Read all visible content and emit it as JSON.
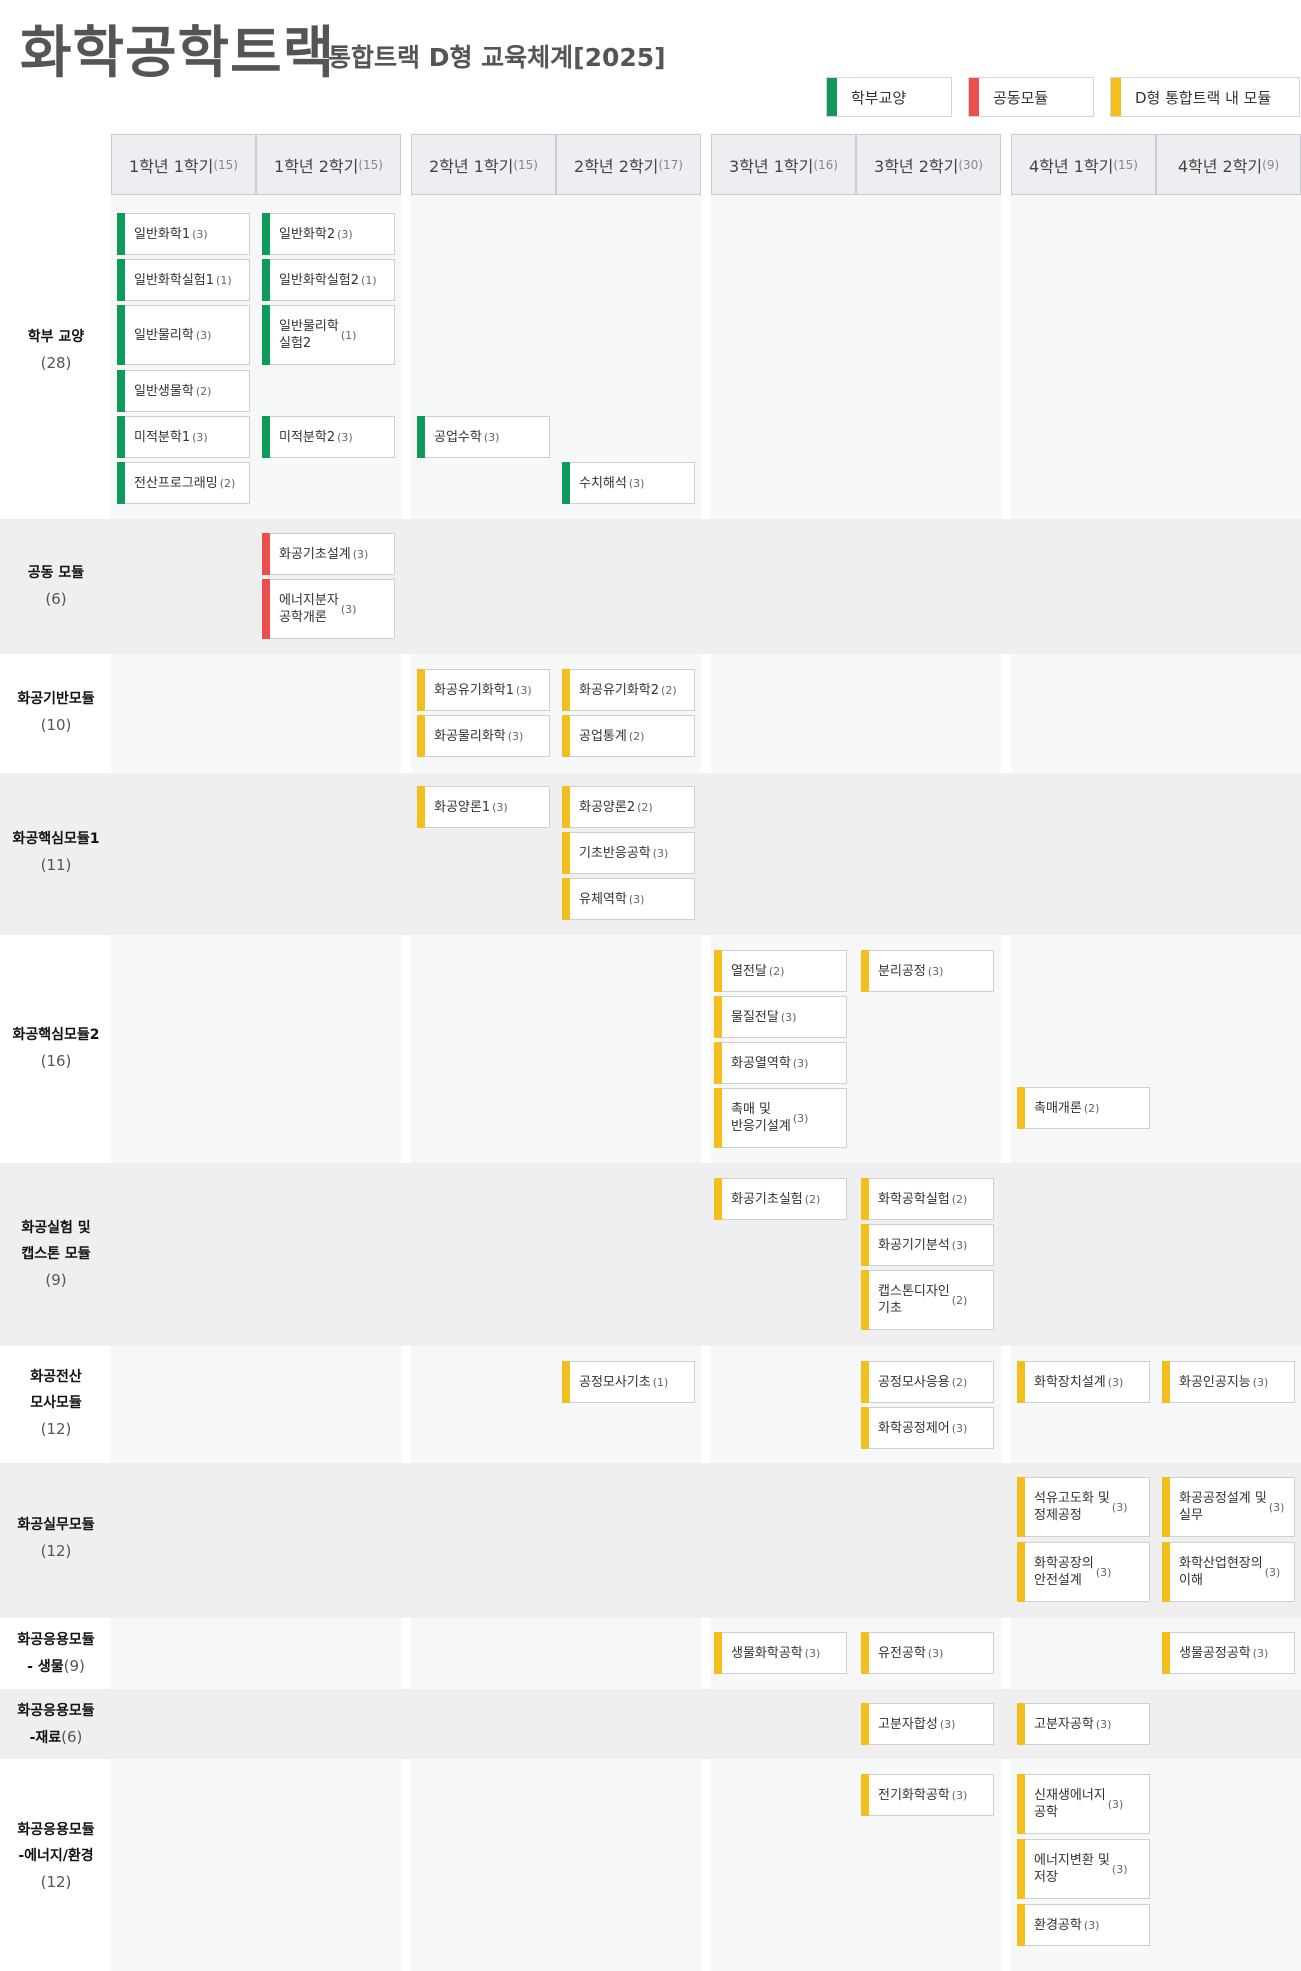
{
  "header": {
    "title": "화학공학트랙",
    "subtitle": "통합트랙 D형 교육체계[2025]"
  },
  "legend": [
    {
      "label": "학부교양",
      "color": "#0e9a5a"
    },
    {
      "label": "공동모듈",
      "color": "#ec4e4e"
    },
    {
      "label": "D형 통합트랙 내 모듈",
      "color": "#f3bf1e"
    }
  ],
  "semesters": [
    {
      "label": "1학년 1학기",
      "credits": "(15)"
    },
    {
      "label": "1학년 2학기",
      "credits": "(15)"
    },
    {
      "label": "2학년 1학기",
      "credits": "(15)"
    },
    {
      "label": "2학년 2학기",
      "credits": "(17)"
    },
    {
      "label": "3학년 1학기",
      "credits": "(16)"
    },
    {
      "label": "3학년 2학기",
      "credits": "(30)"
    },
    {
      "label": "4학년 1학기",
      "credits": "(15)"
    },
    {
      "label": "4학년 2학기",
      "credits": "(9)"
    }
  ],
  "rows": [
    {
      "name": "학부 교양",
      "credit": "(28)"
    },
    {
      "name": "공동 모듈",
      "credit": "(6)"
    },
    {
      "name": "화공기반모듈",
      "credit": "(10)"
    },
    {
      "name": "화공핵심모듈1",
      "credit": "(11)"
    },
    {
      "name": "화공핵심모듈2",
      "credit": "(16)"
    },
    {
      "name": "화공실험 및\n캡스톤 모듈",
      "credit": "(9)"
    },
    {
      "name": "화공전산\n모사모듈",
      "credit": "(12)"
    },
    {
      "name": "화공실무모듈",
      "credit": "(12)"
    },
    {
      "name": "화공응용모듈\n- 생물",
      "credit": "(9)"
    },
    {
      "name": "화공응용모듈\n-재료",
      "credit": "(6)"
    },
    {
      "name": "화공응용모듈\n-에너지/환경",
      "credit": "(12)"
    }
  ],
  "courses": [
    {
      "name": "일반화학1",
      "credit": "(3)",
      "type": "green"
    },
    {
      "name": "일반화학실험1",
      "credit": "(1)",
      "type": "green"
    },
    {
      "name": "일반물리학",
      "credit": "(3)",
      "type": "green"
    },
    {
      "name": "일반생물학",
      "credit": "(2)",
      "type": "green"
    },
    {
      "name": "미적분학1",
      "credit": "(3)",
      "type": "green"
    },
    {
      "name": "전산프로그래밍",
      "credit": "(2)",
      "type": "green"
    },
    {
      "name": "일반화학2",
      "credit": "(3)",
      "type": "green"
    },
    {
      "name": "일반화학실험2",
      "credit": "(1)",
      "type": "green"
    },
    {
      "name": "일반물리학\n실험2",
      "credit": "(1)",
      "type": "green"
    },
    {
      "name": "미적분학2",
      "credit": "(3)",
      "type": "green"
    },
    {
      "name": "공업수학",
      "credit": "(3)",
      "type": "green"
    },
    {
      "name": "수치해석",
      "credit": "(3)",
      "type": "green"
    },
    {
      "name": "화공기초설계",
      "credit": "(3)",
      "type": "red"
    },
    {
      "name": "에너지분자\n공학개론",
      "credit": "(3)",
      "type": "red"
    },
    {
      "name": "화공유기화학1",
      "credit": "(3)",
      "type": "yellow"
    },
    {
      "name": "화공물리화학",
      "credit": "(3)",
      "type": "yellow"
    },
    {
      "name": "화공유기화학2",
      "credit": "(2)",
      "type": "yellow"
    },
    {
      "name": "공업통계",
      "credit": "(2)",
      "type": "yellow"
    },
    {
      "name": "화공양론1",
      "credit": "(3)",
      "type": "yellow"
    },
    {
      "name": "화공양론2",
      "credit": "(2)",
      "type": "yellow"
    },
    {
      "name": "기초반응공학",
      "credit": "(3)",
      "type": "yellow"
    },
    {
      "name": "유체역학",
      "credit": "(3)",
      "type": "yellow"
    },
    {
      "name": "열전달",
      "credit": "(2)",
      "type": "yellow"
    },
    {
      "name": "물질전달",
      "credit": "(3)",
      "type": "yellow"
    },
    {
      "name": "화공열역학",
      "credit": "(3)",
      "type": "yellow"
    },
    {
      "name": "촉매 및\n반응기설계",
      "credit": "(3)",
      "type": "yellow"
    },
    {
      "name": "분리공정",
      "credit": "(3)",
      "type": "yellow"
    },
    {
      "name": "촉매개론",
      "credit": "(2)",
      "type": "yellow"
    },
    {
      "name": "화공기초실험",
      "credit": "(2)",
      "type": "yellow"
    },
    {
      "name": "화학공학실험",
      "credit": "(2)",
      "type": "yellow"
    },
    {
      "name": "화공기기분석",
      "credit": "(3)",
      "type": "yellow"
    },
    {
      "name": "캡스톤디자인\n기초",
      "credit": "(2)",
      "type": "yellow"
    },
    {
      "name": "공정모사기초",
      "credit": "(1)",
      "type": "yellow"
    },
    {
      "name": "공정모사응용",
      "credit": "(2)",
      "type": "yellow"
    },
    {
      "name": "화학공정제어",
      "credit": "(3)",
      "type": "yellow"
    },
    {
      "name": "화학장치설계",
      "credit": "(3)",
      "type": "yellow"
    },
    {
      "name": "화공인공지능",
      "credit": "(3)",
      "type": "yellow"
    },
    {
      "name": "석유고도화 및\n정제공정",
      "credit": "(3)",
      "type": "yellow"
    },
    {
      "name": "화학공장의\n안전설계",
      "credit": "(3)",
      "type": "yellow"
    },
    {
      "name": "화공공정설계 및\n실무",
      "credit": "(3)",
      "type": "yellow"
    },
    {
      "name": "화학산업현장의\n이해",
      "credit": "(3)",
      "type": "yellow"
    },
    {
      "name": "생물화학공학",
      "credit": "(3)",
      "type": "yellow"
    },
    {
      "name": "유전공학",
      "credit": "(3)",
      "type": "yellow"
    },
    {
      "name": "생물공정공학",
      "credit": "(3)",
      "type": "yellow"
    },
    {
      "name": "고분자합성",
      "credit": "(3)",
      "type": "yellow"
    },
    {
      "name": "고분자공학",
      "credit": "(3)",
      "type": "yellow"
    },
    {
      "name": "전기화학공학",
      "credit": "(3)",
      "type": "yellow"
    },
    {
      "name": "신재생에너지\n공학",
      "credit": "(3)",
      "type": "yellow"
    },
    {
      "name": "에너지변환 및\n저장",
      "credit": "(3)",
      "type": "yellow"
    },
    {
      "name": "환경공학",
      "credit": "(3)",
      "type": "yellow"
    }
  ]
}
